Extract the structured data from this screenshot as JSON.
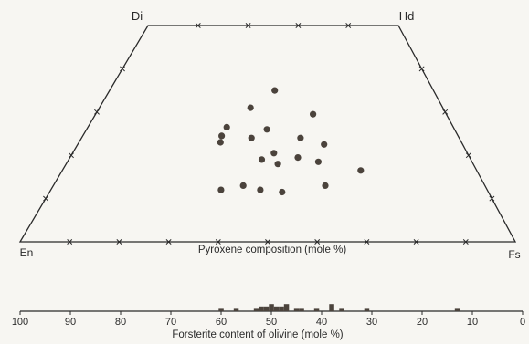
{
  "chart_data": [
    {
      "type": "scatter",
      "chart_id": "pyroxene-quadrilateral",
      "corner_labels": {
        "top_left": "Di",
        "top_right": "Hd",
        "bottom_left": "En",
        "bottom_right": "Fs"
      },
      "xlabel": "Pyroxene composition (mole %)",
      "tick_marks": "x",
      "points": [
        {
          "x": 0.51,
          "y": 0.7
        },
        {
          "x": 0.44,
          "y": 0.62
        },
        {
          "x": 0.62,
          "y": 0.59
        },
        {
          "x": 0.38,
          "y": 0.53
        },
        {
          "x": 0.37,
          "y": 0.49
        },
        {
          "x": 0.37,
          "y": 0.46
        },
        {
          "x": 0.49,
          "y": 0.52
        },
        {
          "x": 0.45,
          "y": 0.48
        },
        {
          "x": 0.58,
          "y": 0.48
        },
        {
          "x": 0.64,
          "y": 0.45
        },
        {
          "x": 0.51,
          "y": 0.41
        },
        {
          "x": 0.57,
          "y": 0.39
        },
        {
          "x": 0.48,
          "y": 0.38
        },
        {
          "x": 0.52,
          "y": 0.36
        },
        {
          "x": 0.62,
          "y": 0.37
        },
        {
          "x": 0.72,
          "y": 0.33
        },
        {
          "x": 0.44,
          "y": 0.26
        },
        {
          "x": 0.48,
          "y": 0.24
        },
        {
          "x": 0.39,
          "y": 0.24
        },
        {
          "x": 0.53,
          "y": 0.23
        },
        {
          "x": 0.63,
          "y": 0.26
        }
      ]
    },
    {
      "type": "bar",
      "chart_id": "forsterite-histogram",
      "xlabel": "Forsterite content of olivine (mole %)",
      "xlim": [
        100,
        0
      ],
      "x_ticks": [
        100,
        90,
        80,
        70,
        60,
        50,
        40,
        30,
        20,
        10,
        0
      ],
      "bars": [
        {
          "x": 60,
          "count": 1
        },
        {
          "x": 57,
          "count": 1
        },
        {
          "x": 53,
          "count": 1
        },
        {
          "x": 52,
          "count": 2
        },
        {
          "x": 51,
          "count": 2
        },
        {
          "x": 50,
          "count": 3
        },
        {
          "x": 49,
          "count": 2
        },
        {
          "x": 48,
          "count": 2
        },
        {
          "x": 47,
          "count": 3
        },
        {
          "x": 45,
          "count": 1
        },
        {
          "x": 44,
          "count": 1
        },
        {
          "x": 41,
          "count": 1
        },
        {
          "x": 38,
          "count": 3
        },
        {
          "x": 36,
          "count": 1
        },
        {
          "x": 31,
          "count": 1
        },
        {
          "x": 13,
          "count": 1
        }
      ]
    }
  ]
}
